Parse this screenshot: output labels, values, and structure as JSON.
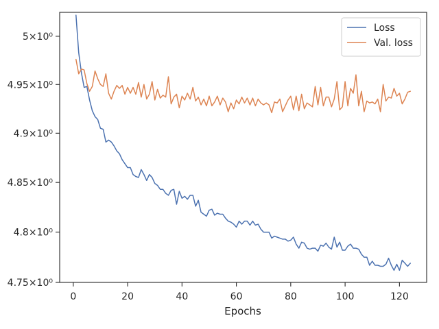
{
  "chart_data": {
    "type": "line",
    "xlabel": "Epochs",
    "ylabel": "",
    "title": "",
    "xlim": [
      -5,
      130
    ],
    "ylim": [
      4.75,
      5.025
    ],
    "yscale": "log",
    "grid": false,
    "legend_position": "top-right",
    "x_ticks": [
      0,
      20,
      40,
      60,
      80,
      100,
      120
    ],
    "x_tick_labels": [
      "0",
      "20",
      "40",
      "60",
      "80",
      "100",
      "120"
    ],
    "y_ticks": [
      4.75,
      4.8,
      4.85,
      4.9,
      4.95,
      5.0
    ],
    "y_tick_labels": [
      "4.75×10⁰",
      "4.8×10⁰",
      "4.85×10⁰",
      "4.9×10⁰",
      "4.95×10⁰",
      "5×10⁰"
    ],
    "series": [
      {
        "name": "Loss",
        "color": "#4c72b0",
        "x": [
          1,
          2,
          3,
          4,
          5,
          6,
          7,
          8,
          9,
          10,
          11,
          12,
          13,
          14,
          15,
          16,
          17,
          18,
          19,
          20,
          21,
          22,
          23,
          24,
          25,
          26,
          27,
          28,
          29,
          30,
          31,
          32,
          33,
          34,
          35,
          36,
          37,
          38,
          39,
          40,
          41,
          42,
          43,
          44,
          45,
          46,
          47,
          48,
          49,
          50,
          51,
          52,
          53,
          54,
          55,
          56,
          57,
          58,
          59,
          60,
          61,
          62,
          63,
          64,
          65,
          66,
          67,
          68,
          69,
          70,
          71,
          72,
          73,
          74,
          75,
          76,
          77,
          78,
          79,
          80,
          81,
          82,
          83,
          84,
          85,
          86,
          87,
          88,
          89,
          90,
          91,
          92,
          93,
          94,
          95,
          96,
          97,
          98,
          99,
          100,
          101,
          102,
          103,
          104,
          105,
          106,
          107,
          108,
          109,
          110,
          111,
          112,
          113,
          114,
          115,
          116,
          117,
          118,
          119,
          120,
          121,
          122,
          123,
          124
        ],
        "values": [
          5.022,
          4.983,
          4.962,
          4.947,
          4.948,
          4.934,
          4.923,
          4.917,
          4.914,
          4.905,
          4.904,
          4.891,
          4.893,
          4.891,
          4.887,
          4.882,
          4.879,
          4.873,
          4.869,
          4.865,
          4.865,
          4.858,
          4.856,
          4.855,
          4.863,
          4.858,
          4.852,
          4.858,
          4.855,
          4.849,
          4.847,
          4.843,
          4.843,
          4.839,
          4.837,
          4.842,
          4.843,
          4.828,
          4.841,
          4.834,
          4.836,
          4.833,
          4.837,
          4.837,
          4.826,
          4.832,
          4.82,
          4.818,
          4.816,
          4.822,
          4.823,
          4.817,
          4.819,
          4.818,
          4.818,
          4.814,
          4.811,
          4.81,
          4.808,
          4.805,
          4.811,
          4.808,
          4.811,
          4.811,
          4.807,
          4.811,
          4.807,
          4.808,
          4.803,
          4.8,
          4.8,
          4.8,
          4.794,
          4.796,
          4.795,
          4.794,
          4.793,
          4.793,
          4.791,
          4.792,
          4.795,
          4.788,
          4.784,
          4.79,
          4.789,
          4.784,
          4.783,
          4.784,
          4.784,
          4.781,
          4.787,
          4.786,
          4.789,
          4.785,
          4.783,
          4.795,
          4.785,
          4.79,
          4.782,
          4.782,
          4.786,
          4.788,
          4.784,
          4.784,
          4.783,
          4.778,
          4.775,
          4.775,
          4.767,
          4.771,
          4.767,
          4.767,
          4.766,
          4.766,
          4.768,
          4.774,
          4.767,
          4.762,
          4.768,
          4.762,
          4.772,
          4.769,
          4.766,
          4.769
        ]
      },
      {
        "name": "Val. loss",
        "color": "#dd8452",
        "x": [
          1,
          2,
          3,
          4,
          5,
          6,
          7,
          8,
          9,
          10,
          11,
          12,
          13,
          14,
          15,
          16,
          17,
          18,
          19,
          20,
          21,
          22,
          23,
          24,
          25,
          26,
          27,
          28,
          29,
          30,
          31,
          32,
          33,
          34,
          35,
          36,
          37,
          38,
          39,
          40,
          41,
          42,
          43,
          44,
          45,
          46,
          47,
          48,
          49,
          50,
          51,
          52,
          53,
          54,
          55,
          56,
          57,
          58,
          59,
          60,
          61,
          62,
          63,
          64,
          65,
          66,
          67,
          68,
          69,
          70,
          71,
          72,
          73,
          74,
          75,
          76,
          77,
          78,
          79,
          80,
          81,
          82,
          83,
          84,
          85,
          86,
          87,
          88,
          89,
          90,
          91,
          92,
          93,
          94,
          95,
          96,
          97,
          98,
          99,
          100,
          101,
          102,
          103,
          104,
          105,
          106,
          107,
          108,
          109,
          110,
          111,
          112,
          113,
          114,
          115,
          116,
          117,
          118,
          119,
          120,
          121,
          122,
          123,
          124
        ],
        "values": [
          4.976,
          4.961,
          4.966,
          4.965,
          4.951,
          4.943,
          4.948,
          4.964,
          4.956,
          4.95,
          4.948,
          4.961,
          4.941,
          4.935,
          4.943,
          4.949,
          4.946,
          4.949,
          4.94,
          4.947,
          4.941,
          4.947,
          4.94,
          4.952,
          4.937,
          4.95,
          4.935,
          4.94,
          4.953,
          4.934,
          4.945,
          4.936,
          4.939,
          4.937,
          4.958,
          4.93,
          4.937,
          4.94,
          4.926,
          4.938,
          4.934,
          4.941,
          4.935,
          4.947,
          4.933,
          4.937,
          4.929,
          4.935,
          4.928,
          4.938,
          4.928,
          4.932,
          4.938,
          4.929,
          4.936,
          4.932,
          4.922,
          4.931,
          4.925,
          4.934,
          4.93,
          4.937,
          4.931,
          4.936,
          4.929,
          4.936,
          4.928,
          4.935,
          4.931,
          4.929,
          4.931,
          4.929,
          4.921,
          4.932,
          4.931,
          4.935,
          4.922,
          4.928,
          4.934,
          4.938,
          4.924,
          4.938,
          4.923,
          4.94,
          4.925,
          4.931,
          4.929,
          4.927,
          4.948,
          4.929,
          4.947,
          4.928,
          4.937,
          4.937,
          4.927,
          4.935,
          4.953,
          4.924,
          4.927,
          4.953,
          4.928,
          4.946,
          4.941,
          4.96,
          4.928,
          4.943,
          4.922,
          4.933,
          4.931,
          4.932,
          4.93,
          4.935,
          4.922,
          4.95,
          4.933,
          4.937,
          4.936,
          4.946,
          4.938,
          4.941,
          4.93,
          4.935,
          4.942,
          4.943
        ]
      }
    ]
  }
}
